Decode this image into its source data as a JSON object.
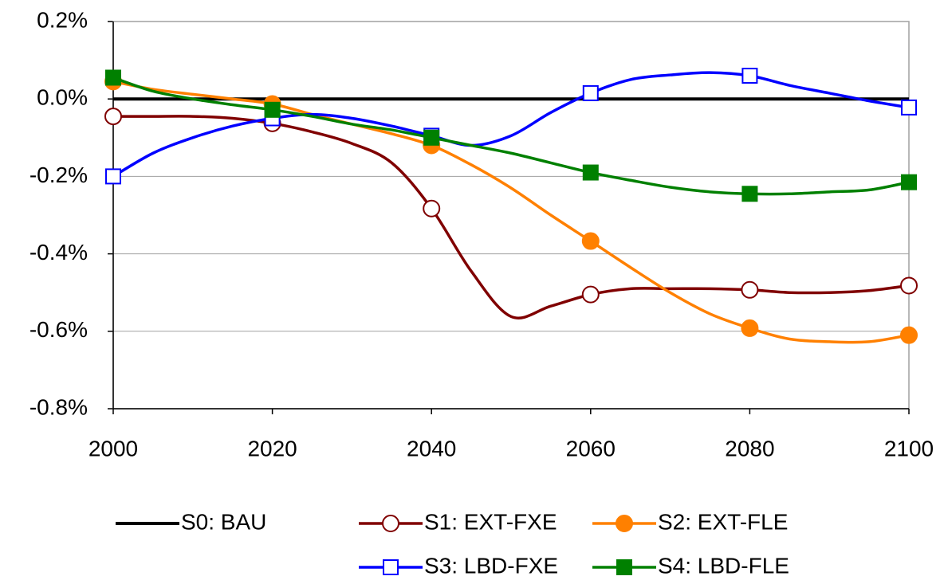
{
  "chart_data": {
    "type": "line",
    "x": [
      2000,
      2005,
      2010,
      2015,
      2020,
      2025,
      2030,
      2035,
      2040,
      2045,
      2050,
      2055,
      2060,
      2065,
      2070,
      2075,
      2080,
      2085,
      2090,
      2095,
      2100
    ],
    "series": [
      {
        "name": "S0: BAU",
        "color": "#000000",
        "marker": "none",
        "filled": false,
        "values": [
          0,
          0,
          0,
          0,
          0,
          0,
          0,
          0,
          0,
          0,
          0,
          0,
          0,
          0,
          0,
          0,
          0,
          0,
          0,
          0,
          0
        ]
      },
      {
        "name": "S1: EXT-FXE",
        "color": "#800000",
        "marker": "circle",
        "filled": false,
        "values": [
          -0.045,
          -0.045,
          -0.045,
          -0.05,
          -0.063,
          -0.085,
          -0.115,
          -0.165,
          -0.283,
          -0.445,
          -0.562,
          -0.535,
          -0.505,
          -0.49,
          -0.49,
          -0.49,
          -0.493,
          -0.5,
          -0.5,
          -0.495,
          -0.482
        ]
      },
      {
        "name": "S2: EXT-FLE",
        "color": "#ff8000",
        "marker": "circle",
        "filled": true,
        "values": [
          0.045,
          0.025,
          0.012,
          0,
          -0.013,
          -0.04,
          -0.065,
          -0.09,
          -0.12,
          -0.17,
          -0.23,
          -0.3,
          -0.367,
          -0.435,
          -0.5,
          -0.555,
          -0.592,
          -0.62,
          -0.627,
          -0.627,
          -0.61
        ]
      },
      {
        "name": "S3: LBD-FXE",
        "color": "#0000ff",
        "marker": "square",
        "filled": false,
        "values": [
          -0.2,
          -0.14,
          -0.1,
          -0.07,
          -0.05,
          -0.04,
          -0.05,
          -0.07,
          -0.095,
          -0.12,
          -0.095,
          -0.035,
          0.015,
          0.05,
          0.062,
          0.068,
          0.06,
          0.035,
          0.015,
          -0.005,
          -0.022
        ]
      },
      {
        "name": "S4: LBD-FLE",
        "color": "#008000",
        "marker": "square",
        "filled": true,
        "values": [
          0.055,
          0.02,
          0,
          -0.015,
          -0.028,
          -0.045,
          -0.065,
          -0.08,
          -0.1,
          -0.12,
          -0.14,
          -0.165,
          -0.19,
          -0.21,
          -0.228,
          -0.24,
          -0.245,
          -0.245,
          -0.24,
          -0.235,
          -0.215
        ]
      }
    ],
    "xlim": [
      2000,
      2100
    ],
    "xticks": [
      2000,
      2020,
      2040,
      2060,
      2080,
      2100
    ],
    "ylim": [
      -0.8,
      0.2
    ],
    "yticks": [
      {
        "value": -0.8,
        "label": "-0.8%"
      },
      {
        "value": -0.6,
        "label": "-0.6%"
      },
      {
        "value": -0.4,
        "label": "-0.4%"
      },
      {
        "value": -0.2,
        "label": "-0.2%"
      },
      {
        "value": 0,
        "label": "0.0%"
      },
      {
        "value": 0.2,
        "label": "0.2%"
      }
    ],
    "grid": true,
    "legend": "bottom"
  }
}
